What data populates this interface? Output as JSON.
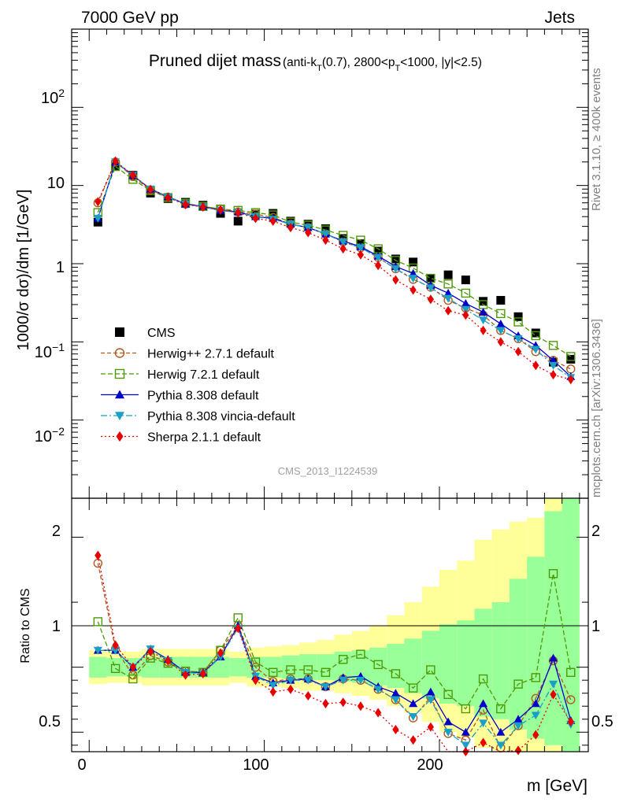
{
  "header": {
    "left": "7000 GeV pp",
    "right": "Jets",
    "side_top": "Rivet 3.1.10, ≥ 400k events",
    "side_bottom": "mcplots.cern.ch [arXiv:1306.3436]"
  },
  "chart_data": [
    {
      "type": "scatter",
      "title": "Pruned dijet mass",
      "title_sub": "(anti-k",
      "title_sub_T": "T",
      "title_sub_rest": "(0.7), 2800<p",
      "title_sub_pT": "T",
      "title_sub_end": "<1000, |y|<2.5)",
      "ylabel": "1000/σ dσ)/dm [1/GeV]",
      "xlabel": "m [GeV]",
      "ylog": true,
      "xlim": [
        -10,
        285
      ],
      "ylim": [
        0.001,
        1000
      ],
      "analysis_id": "CMS_2013_I1224539",
      "y_ticks": [
        "10−2",
        "10−1",
        "1",
        "10",
        "102"
      ],
      "legend_position": "center-left",
      "x": [
        5,
        15,
        25,
        35,
        45,
        55,
        65,
        75,
        85,
        95,
        105,
        115,
        125,
        135,
        145,
        155,
        165,
        175,
        185,
        195,
        205,
        215,
        225,
        235,
        245,
        255,
        265,
        275
      ],
      "series": [
        {
          "name": "CMS",
          "color": "#000000",
          "marker": "square-filled",
          "values": [
            3.4,
            17.5,
            13.5,
            8.0,
            6.8,
            6.1,
            5.6,
            4.4,
            3.5,
            4.3,
            4.4,
            3.5,
            3.2,
            2.8,
            2.1,
            1.8,
            1.45,
            1.15,
            1.05,
            0.65,
            0.72,
            0.62,
            0.33,
            0.34,
            0.21,
            0.13,
            0.055,
            0.06
          ]
        },
        {
          "name": "Herwig++ 2.7.1 default",
          "color": "#b05a1e",
          "marker": "circle-open",
          "dash": "5,3",
          "values": [
            6.0,
            20.0,
            13.0,
            8.8,
            7.1,
            5.8,
            5.4,
            5.0,
            4.6,
            4.3,
            3.9,
            3.2,
            2.9,
            2.4,
            1.9,
            1.6,
            1.2,
            0.86,
            0.63,
            0.5,
            0.34,
            0.27,
            0.22,
            0.14,
            0.11,
            0.075,
            0.058,
            0.045
          ]
        },
        {
          "name": "Herwig 7.2.1 default",
          "color": "#4e9a06",
          "marker": "square-open",
          "dash": "6,3",
          "values": [
            4.5,
            17.5,
            12.0,
            8.6,
            7.0,
            5.9,
            5.4,
            5.0,
            4.8,
            4.5,
            4.2,
            3.4,
            3.1,
            2.7,
            2.3,
            2.0,
            1.55,
            1.1,
            0.88,
            0.65,
            0.55,
            0.42,
            0.3,
            0.23,
            0.18,
            0.12,
            0.09,
            0.065
          ]
        },
        {
          "name": "Pythia 8.308 default",
          "color": "#0000c8",
          "marker": "triangle-up",
          "dash": "",
          "values": [
            3.8,
            20.0,
            13.5,
            9.0,
            7.2,
            5.8,
            5.4,
            4.8,
            4.6,
            4.0,
            3.8,
            3.2,
            2.9,
            2.4,
            1.95,
            1.65,
            1.25,
            0.92,
            0.75,
            0.53,
            0.42,
            0.31,
            0.24,
            0.17,
            0.12,
            0.09,
            0.058,
            0.036
          ]
        },
        {
          "name": "Pythia 8.308 vincia-default",
          "color": "#1a9fc7",
          "marker": "triangle-down",
          "dash": "8,3,2,3",
          "values": [
            3.8,
            20.0,
            13.5,
            9.0,
            7.1,
            5.8,
            5.3,
            4.8,
            4.5,
            4.0,
            3.7,
            3.2,
            2.9,
            2.4,
            1.9,
            1.6,
            1.2,
            0.86,
            0.65,
            0.49,
            0.36,
            0.26,
            0.19,
            0.14,
            0.11,
            0.08,
            0.05,
            0.035
          ]
        },
        {
          "name": "Sherpa 2.1.1 default",
          "color": "#e60000",
          "marker": "diamond",
          "dash": "2,3",
          "values": [
            6.2,
            20.5,
            13.5,
            8.9,
            7.0,
            5.7,
            5.3,
            4.9,
            4.5,
            3.8,
            3.5,
            2.9,
            2.5,
            2.0,
            1.55,
            1.3,
            0.95,
            0.62,
            0.46,
            0.35,
            0.25,
            0.22,
            0.14,
            0.1,
            0.075,
            0.05,
            0.038,
            0.033
          ]
        }
      ]
    },
    {
      "type": "scatter",
      "ylabel": "Ratio to CMS",
      "xlabel": "m [GeV]",
      "xlim": [
        -10,
        285
      ],
      "ylim": [
        0.35,
        2.3
      ],
      "x_ticks": [
        "0",
        "100",
        "200"
      ],
      "y_ticks": [
        "0.5",
        "1",
        "2"
      ],
      "reference_line": 1,
      "uncertainty_bands": {
        "x_edges": [
          0,
          10,
          20,
          30,
          40,
          50,
          60,
          70,
          80,
          90,
          100,
          110,
          120,
          130,
          140,
          150,
          160,
          170,
          180,
          190,
          200,
          210,
          220,
          230,
          240,
          250,
          260,
          270,
          280
        ],
        "green_lo": [
          0.92,
          0.93,
          0.93,
          0.92,
          0.92,
          0.92,
          0.92,
          0.92,
          0.93,
          0.92,
          0.92,
          0.91,
          0.9,
          0.9,
          0.89,
          0.88,
          0.86,
          0.84,
          0.8,
          0.76,
          0.72,
          0.7,
          0.62,
          0.6,
          0.52,
          0.45,
          0.4,
          0.35
        ],
        "green_hi": [
          1.08,
          1.07,
          1.07,
          1.08,
          1.08,
          1.08,
          1.08,
          1.08,
          1.07,
          1.08,
          1.08,
          1.09,
          1.1,
          1.1,
          1.12,
          1.13,
          1.15,
          1.18,
          1.22,
          1.28,
          1.33,
          1.36,
          1.45,
          1.5,
          1.68,
          1.85,
          2.2,
          2.3
        ],
        "yellow_lo": [
          0.87,
          0.88,
          0.88,
          0.86,
          0.86,
          0.86,
          0.86,
          0.86,
          0.88,
          0.85,
          0.85,
          0.84,
          0.82,
          0.82,
          0.8,
          0.78,
          0.75,
          0.7,
          0.65,
          0.58,
          0.5,
          0.46,
          0.38,
          0.36,
          0.35,
          0.35,
          0.35,
          0.35
        ],
        "yellow_hi": [
          1.13,
          1.12,
          1.12,
          1.14,
          1.14,
          1.14,
          1.14,
          1.14,
          1.12,
          1.15,
          1.16,
          1.17,
          1.19,
          1.21,
          1.25,
          1.28,
          1.32,
          1.4,
          1.5,
          1.62,
          1.75,
          1.82,
          1.98,
          2.06,
          2.12,
          2.15,
          2.3,
          2.3
        ]
      },
      "x": [
        5,
        15,
        25,
        35,
        45,
        55,
        65,
        75,
        85,
        95,
        105,
        115,
        125,
        135,
        145,
        155,
        165,
        175,
        185,
        195,
        205,
        215,
        225,
        235,
        245,
        255,
        265,
        275
      ],
      "series": [
        {
          "name": "Herwig++ 2.7.1 default",
          "color": "#b05a1e",
          "marker": "circle-open",
          "dash": "5,3",
          "values": [
            1.8,
            1.14,
            0.94,
            1.09,
            1.04,
            0.97,
            0.96,
            1.13,
            1.32,
            1.0,
            0.89,
            0.91,
            0.91,
            0.85,
            0.91,
            0.9,
            0.83,
            0.75,
            0.61,
            0.77,
            0.49,
            0.44,
            0.67,
            0.38,
            0.55,
            0.76,
            1.05,
            0.75
          ]
        },
        {
          "name": "Herwig 7.2.1 default",
          "color": "#4e9a06",
          "marker": "square-open",
          "dash": "6,3",
          "values": [
            1.35,
            0.99,
            0.91,
            1.07,
            1.03,
            0.97,
            0.96,
            1.13,
            1.38,
            1.04,
            0.96,
            0.98,
            0.98,
            0.96,
            1.06,
            1.1,
            1.02,
            0.95,
            0.84,
            0.98,
            0.79,
            0.68,
            0.91,
            0.68,
            0.87,
            0.92,
            1.72,
            0.96
          ]
        },
        {
          "name": "Pythia 8.308 default",
          "color": "#0000c8",
          "marker": "triangle-up",
          "dash": "",
          "values": [
            1.13,
            1.13,
            1.0,
            1.14,
            1.06,
            0.96,
            0.96,
            1.08,
            1.32,
            0.93,
            0.88,
            0.9,
            0.91,
            0.85,
            0.92,
            0.93,
            0.85,
            0.8,
            0.72,
            0.81,
            0.58,
            0.5,
            0.72,
            0.5,
            0.6,
            0.72,
            1.07,
            0.59
          ]
        },
        {
          "name": "Pythia 8.308 vincia-default",
          "color": "#1a9fc7",
          "marker": "triangle-down",
          "dash": "8,3,2,3",
          "values": [
            1.13,
            1.13,
            1.0,
            1.14,
            1.05,
            0.96,
            0.95,
            1.08,
            1.3,
            0.93,
            0.86,
            0.9,
            0.9,
            0.85,
            0.9,
            0.9,
            0.83,
            0.75,
            0.62,
            0.75,
            0.5,
            0.4,
            0.57,
            0.4,
            0.55,
            0.63,
            0.87,
            0.56
          ]
        },
        {
          "name": "Sherpa 2.1.1 default",
          "color": "#e60000",
          "marker": "diamond",
          "dash": "2,3",
          "values": [
            1.86,
            1.17,
            1.0,
            1.12,
            1.05,
            0.94,
            0.95,
            1.11,
            1.3,
            0.9,
            0.81,
            0.83,
            0.78,
            0.72,
            0.73,
            0.7,
            0.65,
            0.52,
            0.44,
            0.54,
            0.34,
            0.35,
            0.42,
            0.3,
            0.36,
            0.48,
            0.79,
            0.58
          ]
        }
      ]
    }
  ]
}
